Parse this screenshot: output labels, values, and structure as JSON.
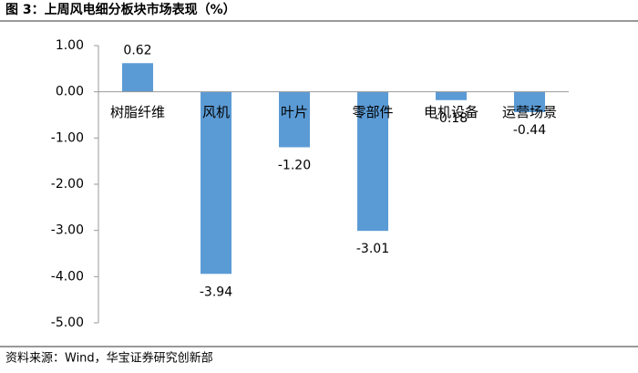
{
  "chart_data": {
    "type": "bar",
    "title": "图 3：上周风电细分板块市场表现（%）",
    "source": "资料来源：Wind，华宝证券研究创新部",
    "categories": [
      "树脂纤维",
      "风机",
      "叶片",
      "零部件",
      "电机设备",
      "运营场景"
    ],
    "values": [
      0.62,
      -3.94,
      -1.2,
      -3.01,
      -0.18,
      -0.44
    ],
    "value_labels": [
      "0.62",
      "-3.94",
      "-1.20",
      "-3.01",
      "-0.18",
      "-0.44"
    ],
    "color": "#5b9bd5",
    "ylim": [
      -5,
      1
    ],
    "yticks": [
      {
        "value": 1,
        "label": "1.00"
      },
      {
        "value": 0,
        "label": "0.00"
      },
      {
        "value": -1,
        "label": "-1.00"
      },
      {
        "value": -2,
        "label": "-2.00"
      },
      {
        "value": -3,
        "label": "-3.00"
      },
      {
        "value": -4,
        "label": "-4.00"
      },
      {
        "value": -5,
        "label": "-5.00"
      }
    ],
    "grid": false
  }
}
